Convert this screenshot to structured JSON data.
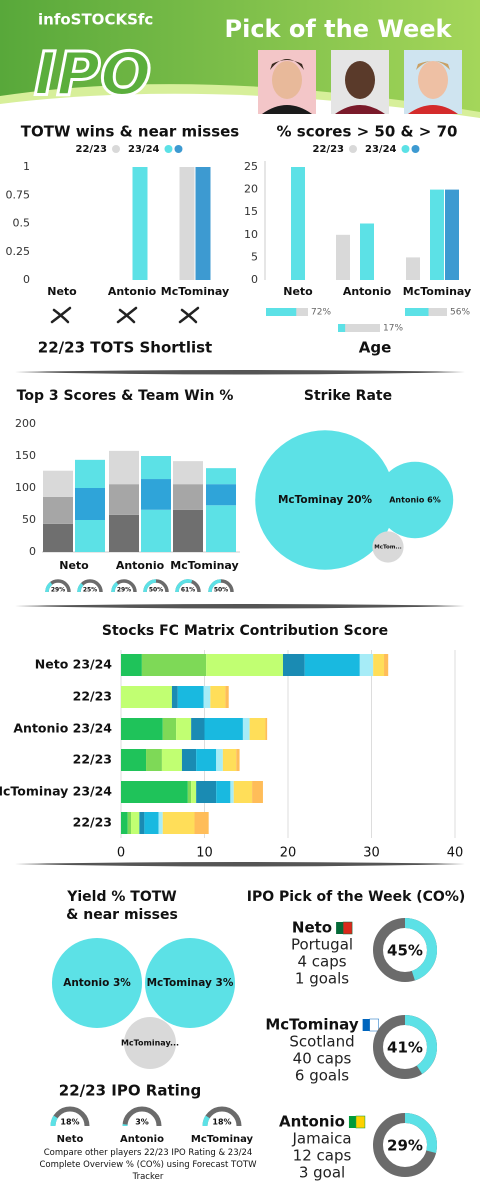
{
  "header": {
    "brand": "infoSTOCKSfc",
    "logo": "IPO",
    "title": "Pick of the Week"
  },
  "chart_data": [
    {
      "type": "bar",
      "title": "TOTW wins & near misses",
      "caption": "22/23 TOTS Shortlist",
      "categories": [
        "Neto",
        "Antonio",
        "McTominay"
      ],
      "series": [
        {
          "name": "22/23",
          "color": "#d9d9d9",
          "values": [
            0,
            0,
            1
          ]
        },
        {
          "name": "23/24",
          "colors": [
            "#5ce1e6",
            "#5ce1e6",
            "#3d9ad1"
          ],
          "values": [
            0,
            1,
            1
          ]
        }
      ],
      "ylim": [
        0,
        1
      ],
      "yticks": [
        0,
        0.25,
        0.5,
        0.75,
        1
      ]
    },
    {
      "type": "bar",
      "title": "% scores > 50 & > 70",
      "categories": [
        "Neto",
        "Antonio",
        "McTominay"
      ],
      "series": [
        {
          "name": "22/23",
          "color": "#d9d9d9",
          "values": [
            0,
            10,
            5
          ]
        },
        {
          "name": "23/24",
          "color": "#5ce1e6",
          "values": [
            25,
            12.5,
            20
          ]
        },
        {
          "color": "#3d9ad1",
          "values": [
            0,
            0,
            20
          ]
        }
      ],
      "ylim": [
        0,
        25
      ],
      "yticks": [
        0,
        5,
        10,
        15,
        20,
        25
      ]
    },
    {
      "type": "progress",
      "title": "Age",
      "values": [
        72,
        17,
        56
      ],
      "value_labels": [
        "72%",
        "17%",
        "56%"
      ],
      "color": "#5ce1e6",
      "track_color": "#d9d9d9"
    },
    {
      "type": "stacked-bar",
      "title": "Top 3 Scores & Team Win %",
      "categories": [
        "Neto",
        null,
        "Antonio",
        null,
        "McTominay",
        null
      ],
      "series": [
        {
          "colors": [
            "#6f6f6f",
            "#5ce1e6",
            "#6f6f6f",
            "#5ce1e6",
            "#6f6f6f",
            "#5ce1e6"
          ],
          "values": [
            44,
            50,
            58,
            66,
            66,
            73
          ]
        },
        {
          "colors": [
            "#a6a6a6",
            "#2fa4d9",
            "#a6a6a6",
            "#2fa4d9",
            "#a6a6a6",
            "#2fa4d9"
          ],
          "values": [
            42,
            50,
            48,
            48,
            40,
            33
          ]
        },
        {
          "colors": [
            "#d9d9d9",
            "#5ce1e6",
            "#d9d9d9",
            "#5ce1e6",
            "#d9d9d9",
            "#5ce1e6"
          ],
          "values": [
            41,
            44,
            52,
            36,
            36,
            25
          ]
        }
      ],
      "ylim": [
        0,
        200
      ],
      "yticks": [
        0,
        50,
        100,
        150,
        200
      ],
      "gauges": {
        "values": [
          29,
          25,
          29,
          50,
          61,
          50
        ],
        "value_labels": [
          "29%",
          "25%",
          "29%",
          "50%",
          "61%",
          "50%"
        ],
        "color": "#5ce1e6",
        "track_color": "#6b6b6b"
      }
    },
    {
      "type": "bubble",
      "title": "Strike Rate",
      "labels": [
        "McTominay 20%",
        "Antonio 6%",
        "McTom..."
      ],
      "values": [
        20,
        6,
        1
      ],
      "colors": [
        "#5ce1e6",
        "#5ce1e6",
        "#d9d9d9"
      ]
    },
    {
      "type": "stacked-barh",
      "title": "Stocks FC Matrix Contribution Score",
      "categories": [
        "Neto 23/24",
        "22/23",
        "Antonio 23/24",
        "22/23",
        "McTominay 23/24",
        "22/23"
      ],
      "series": [
        {
          "color": "#1fc35a",
          "values": [
            2.5,
            0,
            5,
            3,
            8,
            0.8
          ]
        },
        {
          "color": "#7ed957",
          "values": [
            7.7,
            0,
            1.6,
            1.9,
            0.4,
            0.4
          ]
        },
        {
          "color": "#c1ff72",
          "values": [
            9.2,
            6.1,
            1.8,
            2.4,
            0.6,
            1.0
          ]
        },
        {
          "color": "#1a8bb3",
          "values": [
            2.6,
            0.7,
            1.6,
            1.7,
            2.4,
            0.6
          ]
        },
        {
          "color": "#19b9e0",
          "values": [
            6.6,
            3.1,
            4.6,
            2.4,
            1.7,
            1.7
          ]
        },
        {
          "color": "#a6ecf7",
          "values": [
            1.6,
            0.8,
            0.8,
            0.8,
            0.4,
            0.5
          ]
        },
        {
          "color": "#ffde59",
          "values": [
            1.3,
            1.8,
            1.9,
            1.6,
            2.2,
            3.8
          ]
        },
        {
          "color": "#ffbd59",
          "values": [
            0.5,
            0.4,
            0.2,
            0.4,
            1.3,
            1.7
          ]
        }
      ],
      "xlim": [
        0,
        40
      ],
      "xticks": [
        0,
        10,
        20,
        30,
        40
      ],
      "grid": true
    },
    {
      "type": "bubble",
      "title": [
        "Yield % TOTW",
        "& near misses"
      ],
      "labels": [
        "Antonio 3%",
        "McTominay 3%",
        "McTominay..."
      ],
      "values": [
        3,
        3,
        1
      ],
      "colors": [
        "#5ce1e6",
        "#5ce1e6",
        "#d9d9d9"
      ]
    },
    {
      "type": "gauge",
      "title": "22/23 IPO Rating",
      "categories": [
        "Neto",
        "Antonio",
        "McTominay"
      ],
      "values": [
        18,
        3,
        18
      ],
      "value_labels": [
        "18%",
        "3%",
        "18%"
      ],
      "color": "#5ce1e6",
      "track_color": "#6b6b6b",
      "note": "Compare other players 22/23 IPO Rating & 23/24 Complete Overview % (CO%) using Forecast TOTW Tracker"
    },
    {
      "type": "donut",
      "title": "IPO Pick of the Week (CO%)",
      "categories": [
        "Neto",
        "McTominay",
        "Antonio"
      ],
      "details": [
        [
          "Portugal",
          "4 caps",
          "1 goals"
        ],
        [
          "Scotland",
          "40 caps",
          "6 goals"
        ],
        [
          "Jamaica",
          "12 caps",
          "3 goal"
        ]
      ],
      "values": [
        45,
        41,
        29
      ],
      "value_labels": [
        "45%",
        "41%",
        "29%"
      ],
      "color": "#5ce1e6",
      "track_color": "#6b6b6b"
    }
  ]
}
